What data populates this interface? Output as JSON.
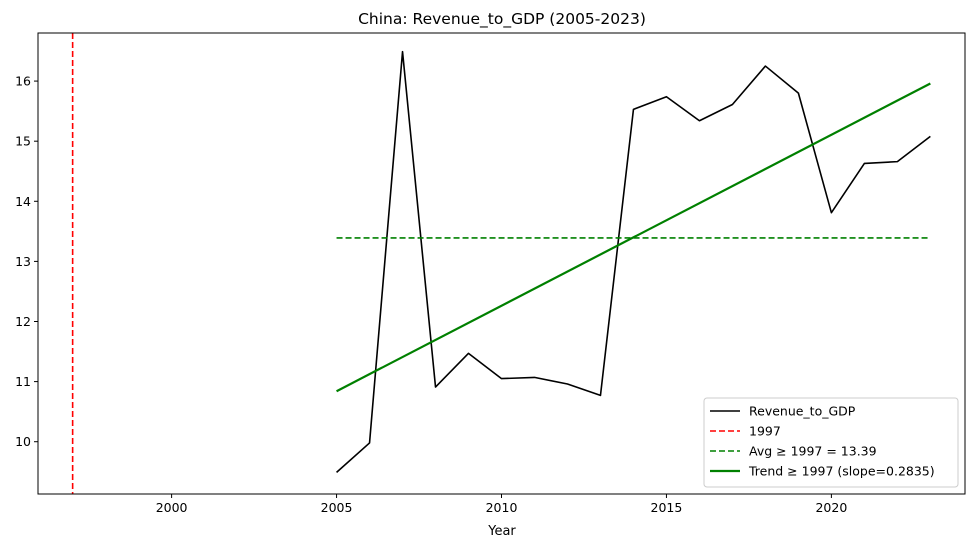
{
  "chart_data": {
    "type": "line",
    "title": "China: Revenue_to_GDP (2005-2023)",
    "xlabel": "Year",
    "ylabel": "",
    "xlim": [
      1995.95,
      2024.05
    ],
    "ylim": [
      9.13,
      16.8
    ],
    "x_ticks": [
      2000,
      2005,
      2010,
      2015,
      2020
    ],
    "y_ticks": [
      10,
      11,
      12,
      13,
      14,
      15,
      16
    ],
    "series": [
      {
        "name": "Revenue_to_GDP",
        "color": "#000000",
        "style": "solid",
        "x": [
          2005,
          2006,
          2007,
          2008,
          2009,
          2010,
          2011,
          2012,
          2013,
          2014,
          2015,
          2016,
          2017,
          2018,
          2019,
          2020,
          2021,
          2022,
          2023
        ],
        "values": [
          9.49,
          9.98,
          16.49,
          10.91,
          11.47,
          11.05,
          11.07,
          10.96,
          10.77,
          15.53,
          15.74,
          15.34,
          15.61,
          16.25,
          15.8,
          13.81,
          14.63,
          14.66,
          15.08
        ]
      },
      {
        "name": "1997",
        "color": "#ff0000",
        "style": "dashed",
        "orientation": "vertical",
        "x_value": 1997
      },
      {
        "name": "Avg ≥ 1997 = 13.39",
        "color": "#008000",
        "style": "dashed",
        "x": [
          2005,
          2023
        ],
        "values": [
          13.39,
          13.39
        ]
      },
      {
        "name": "Trend ≥ 1997 (slope=0.2835)",
        "color": "#008000",
        "style": "solid",
        "x": [
          2005,
          2023
        ],
        "values": [
          10.84,
          15.96
        ]
      }
    ],
    "legend": {
      "placement": "bottom-right",
      "entries": [
        {
          "label": "Revenue_to_GDP",
          "color": "#000000",
          "style": "solid"
        },
        {
          "label": "1997",
          "color": "#ff0000",
          "style": "dashed"
        },
        {
          "label": "Avg ≥ 1997 = 13.39",
          "color": "#008000",
          "style": "dashed"
        },
        {
          "label": "Trend ≥ 1997 (slope=0.2835)",
          "color": "#008000",
          "style": "solid"
        }
      ]
    }
  }
}
